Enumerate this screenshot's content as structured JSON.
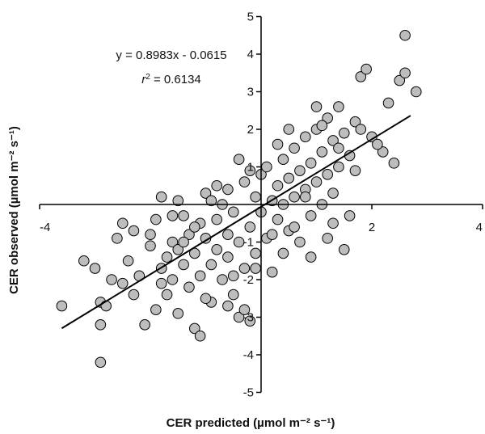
{
  "chart_data": {
    "type": "scatter",
    "xlabel": "CER predicted (µmol m⁻² s⁻¹)",
    "ylabel": "CER observed (µmol m⁻² s⁻¹)",
    "xlim": [
      -4,
      4
    ],
    "ylim": [
      -5,
      5
    ],
    "x_ticks": [
      -4,
      2,
      4
    ],
    "x_tick_labels": [
      "-4",
      "2",
      "4"
    ],
    "y_ticks": [
      -5,
      -4,
      -3,
      -2,
      -1,
      1,
      2,
      3,
      4,
      5
    ],
    "y_tick_labels": [
      "-5",
      "-4",
      "-3",
      "-2",
      "-1",
      "1",
      "2",
      "3",
      "4",
      "5"
    ],
    "annotations": {
      "equation": "y = 0.8983x - 0.0615",
      "r2_prefix": "r",
      "r2_sup": "2",
      "r2_value": " = 0.6134"
    },
    "trendline": {
      "slope": 0.8983,
      "intercept": -0.0615,
      "x_range": [
        -3.6,
        2.7
      ]
    },
    "marker_fill": "#bdbdbd",
    "marker_stroke": "#000000",
    "grid": false,
    "series": [
      {
        "points": [
          [
            -3.6,
            -2.7
          ],
          [
            -3.2,
            -1.5
          ],
          [
            -3.0,
            -1.7
          ],
          [
            -2.9,
            -2.6
          ],
          [
            -2.8,
            -2.7
          ],
          [
            -2.9,
            -3.2
          ],
          [
            -2.9,
            -4.2
          ],
          [
            -2.6,
            -0.9
          ],
          [
            -2.5,
            -2.1
          ],
          [
            -2.4,
            -1.5
          ],
          [
            -2.2,
            -1.9
          ],
          [
            -2.1,
            -3.2
          ],
          [
            -2.3,
            -0.7
          ],
          [
            -2.0,
            -0.8
          ],
          [
            -1.9,
            -2.8
          ],
          [
            -1.8,
            -1.7
          ],
          [
            -1.8,
            0.2
          ],
          [
            -1.7,
            -1.4
          ],
          [
            -1.7,
            -2.4
          ],
          [
            -1.6,
            -1.0
          ],
          [
            -1.6,
            -2.0
          ],
          [
            -1.5,
            -1.2
          ],
          [
            -1.5,
            -2.9
          ],
          [
            -1.4,
            -0.3
          ],
          [
            -1.4,
            -1.6
          ],
          [
            -1.3,
            -0.8
          ],
          [
            -1.3,
            -2.2
          ],
          [
            -1.2,
            -1.3
          ],
          [
            -1.2,
            -3.3
          ],
          [
            -1.1,
            -0.5
          ],
          [
            -1.1,
            -1.9
          ],
          [
            -1.0,
            -0.9
          ],
          [
            -1.0,
            0.3
          ],
          [
            -0.9,
            -1.6
          ],
          [
            -0.9,
            -2.6
          ],
          [
            -0.8,
            -0.4
          ],
          [
            -0.8,
            -1.2
          ],
          [
            -0.7,
            -2.0
          ],
          [
            -0.7,
            0.0
          ],
          [
            -0.6,
            -0.8
          ],
          [
            -0.6,
            -1.4
          ],
          [
            -0.5,
            -2.4
          ],
          [
            -0.5,
            -0.2
          ],
          [
            -0.4,
            -1.0
          ],
          [
            -0.4,
            -3.0
          ],
          [
            -0.3,
            0.6
          ],
          [
            -0.3,
            -1.7
          ],
          [
            -0.2,
            -0.6
          ],
          [
            -0.2,
            -3.1
          ],
          [
            -0.1,
            0.2
          ],
          [
            -0.1,
            -1.3
          ],
          [
            0.0,
            -0.2
          ],
          [
            0.0,
            0.8
          ],
          [
            0.1,
            -0.9
          ],
          [
            0.1,
            1.0
          ],
          [
            0.2,
            0.1
          ],
          [
            0.2,
            -1.8
          ],
          [
            0.3,
            0.5
          ],
          [
            0.3,
            -0.4
          ],
          [
            0.4,
            1.2
          ],
          [
            0.4,
            0.0
          ],
          [
            0.5,
            -0.7
          ],
          [
            0.5,
            0.7
          ],
          [
            0.6,
            1.5
          ],
          [
            0.6,
            0.2
          ],
          [
            0.7,
            -1.0
          ],
          [
            0.7,
            0.9
          ],
          [
            0.8,
            0.4
          ],
          [
            0.8,
            1.8
          ],
          [
            0.9,
            -0.3
          ],
          [
            0.9,
            1.1
          ],
          [
            1.0,
            0.6
          ],
          [
            1.0,
            2.0
          ],
          [
            1.1,
            0.0
          ],
          [
            1.1,
            1.4
          ],
          [
            1.2,
            0.8
          ],
          [
            1.2,
            2.3
          ],
          [
            1.3,
            -0.5
          ],
          [
            1.3,
            1.7
          ],
          [
            1.4,
            1.0
          ],
          [
            1.4,
            2.6
          ],
          [
            1.5,
            -1.2
          ],
          [
            1.5,
            1.9
          ],
          [
            1.6,
            1.3
          ],
          [
            1.7,
            2.2
          ],
          [
            1.8,
            3.4
          ],
          [
            1.9,
            3.6
          ],
          [
            2.0,
            1.8
          ],
          [
            2.2,
            1.4
          ],
          [
            2.3,
            2.7
          ],
          [
            2.4,
            1.1
          ],
          [
            2.5,
            3.3
          ],
          [
            2.6,
            3.5
          ],
          [
            2.6,
            4.5
          ],
          [
            2.8,
            3.0
          ],
          [
            1.2,
            -0.9
          ],
          [
            0.9,
            -1.4
          ],
          [
            1.6,
            -0.3
          ],
          [
            -1.9,
            -0.4
          ],
          [
            -2.7,
            -2.0
          ],
          [
            -0.2,
            0.9
          ],
          [
            0.3,
            1.6
          ],
          [
            -0.6,
            0.4
          ],
          [
            -1.5,
            0.1
          ],
          [
            -2.0,
            -1.1
          ],
          [
            -1.0,
            -2.5
          ],
          [
            -0.3,
            -2.8
          ],
          [
            0.5,
            2.0
          ],
          [
            1.3,
            0.3
          ],
          [
            1.8,
            2.0
          ],
          [
            -1.4,
            -1.0
          ],
          [
            -0.8,
            0.5
          ],
          [
            -2.5,
            -0.5
          ],
          [
            -0.1,
            -1.7
          ],
          [
            0.6,
            -0.6
          ],
          [
            -1.8,
            -2.1
          ],
          [
            -1.1,
            -3.5
          ],
          [
            2.1,
            1.6
          ],
          [
            -0.4,
            1.2
          ],
          [
            1.0,
            2.6
          ],
          [
            0.2,
            -0.8
          ],
          [
            -0.6,
            -2.7
          ],
          [
            1.4,
            1.5
          ],
          [
            -1.6,
            -0.3
          ],
          [
            -2.3,
            -2.4
          ],
          [
            0.8,
            0.2
          ],
          [
            -0.9,
            0.1
          ],
          [
            1.1,
            2.1
          ],
          [
            -0.5,
            -1.9
          ],
          [
            0.4,
            -1.3
          ],
          [
            1.7,
            0.9
          ],
          [
            -1.2,
            -0.6
          ]
        ]
      }
    ]
  }
}
